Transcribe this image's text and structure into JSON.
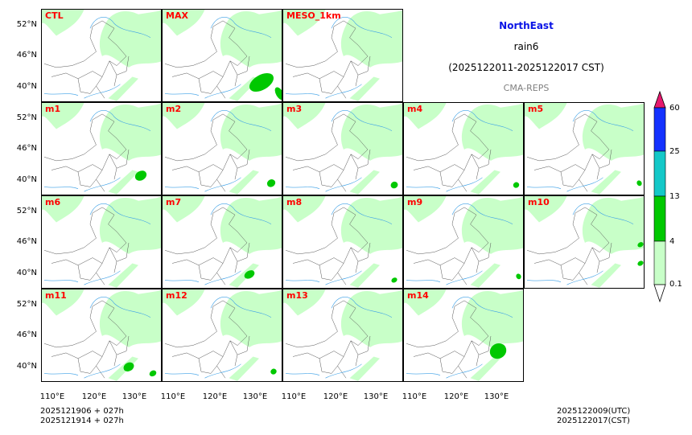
{
  "title": {
    "region": "NorthEast",
    "variable": "rain6",
    "period": "(2025122011-2025122017 CST)",
    "source": "CMA-REPS"
  },
  "colors": {
    "region_title": "#0a14e6",
    "panel_label": "#ff0000",
    "source": "#808080"
  },
  "panels": [
    {
      "label": "CTL",
      "heavy": []
    },
    {
      "label": "MAX",
      "heavy": [
        [
          0.82,
          0.78,
          0.22,
          0.16
        ],
        [
          0.97,
          0.9,
          0.06,
          0.15
        ]
      ]
    },
    {
      "label": "MESO_1km",
      "heavy": []
    },
    {
      "label": "m1",
      "heavy": [
        [
          0.82,
          0.78,
          0.1,
          0.1
        ]
      ]
    },
    {
      "label": "m2",
      "heavy": [
        [
          0.9,
          0.86,
          0.07,
          0.08
        ]
      ]
    },
    {
      "label": "m3",
      "heavy": [
        [
          0.92,
          0.88,
          0.06,
          0.07
        ]
      ]
    },
    {
      "label": "m4",
      "heavy": [
        [
          0.93,
          0.88,
          0.05,
          0.06
        ]
      ]
    },
    {
      "label": "m5",
      "heavy": [
        [
          0.95,
          0.86,
          0.04,
          0.06
        ]
      ]
    },
    {
      "label": "m6",
      "heavy": []
    },
    {
      "label": "m7",
      "heavy": [
        [
          0.72,
          0.84,
          0.09,
          0.08
        ]
      ]
    },
    {
      "label": "m8",
      "heavy": [
        [
          0.92,
          0.9,
          0.05,
          0.05
        ]
      ]
    },
    {
      "label": "m9",
      "heavy": [
        [
          0.95,
          0.86,
          0.04,
          0.06
        ]
      ]
    },
    {
      "label": "m10",
      "heavy": [
        [
          0.96,
          0.52,
          0.05,
          0.05
        ],
        [
          0.96,
          0.72,
          0.05,
          0.05
        ]
      ]
    },
    {
      "label": "m11",
      "heavy": [
        [
          0.72,
          0.83,
          0.09,
          0.09
        ],
        [
          0.92,
          0.9,
          0.06,
          0.06
        ]
      ]
    },
    {
      "label": "m12",
      "heavy": [
        [
          0.92,
          0.88,
          0.05,
          0.06
        ]
      ]
    },
    {
      "label": "m13",
      "heavy": []
    },
    {
      "label": "m14",
      "heavy": [
        [
          0.78,
          0.66,
          0.14,
          0.16
        ]
      ]
    }
  ],
  "lat_labels": [
    "52°N",
    "46°N",
    "40°N"
  ],
  "lon_labels": [
    "110°E",
    "120°E",
    "130°E"
  ],
  "colorbar": {
    "levels": [
      "60",
      "25",
      "13",
      "4",
      "0.1"
    ],
    "colors": [
      "#1432ff",
      "#14c8c8",
      "#00c800",
      "#c8ffc8"
    ],
    "over_color": "#e6196e",
    "under_color": "#ffffff"
  },
  "footer": {
    "init1": "2025121906  +  027h",
    "init2": "2025121914  +  027h",
    "valid_utc": "2025122009(UTC)",
    "valid_cst": "2025122017(CST)"
  }
}
